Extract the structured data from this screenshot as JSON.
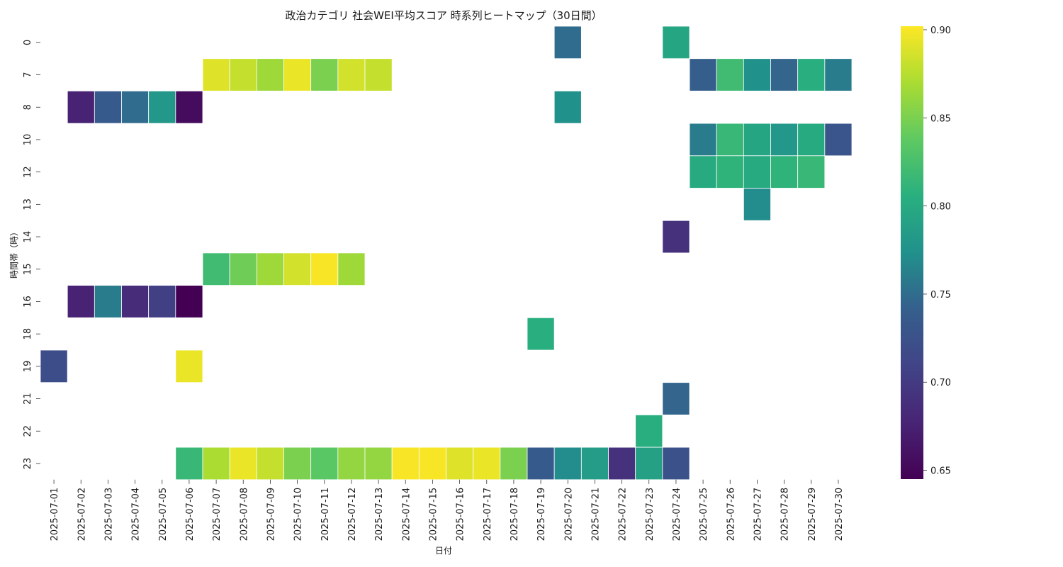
{
  "chart_data": {
    "type": "heatmap",
    "title": "政治カテゴリ 社会WEI平均スコア 時系列ヒートマップ（30日間）",
    "xlabel": "日付",
    "ylabel": "時間帯（時）",
    "x": [
      "2025-07-01",
      "2025-07-02",
      "2025-07-03",
      "2025-07-04",
      "2025-07-05",
      "2025-07-06",
      "2025-07-07",
      "2025-07-08",
      "2025-07-09",
      "2025-07-10",
      "2025-07-11",
      "2025-07-12",
      "2025-07-13",
      "2025-07-14",
      "2025-07-15",
      "2025-07-16",
      "2025-07-17",
      "2025-07-18",
      "2025-07-19",
      "2025-07-20",
      "2025-07-21",
      "2025-07-22",
      "2025-07-23",
      "2025-07-24",
      "2025-07-25",
      "2025-07-26",
      "2025-07-27",
      "2025-07-28",
      "2025-07-29",
      "2025-07-30"
    ],
    "y": [
      "0",
      "7",
      "8",
      "10",
      "12",
      "13",
      "14",
      "15",
      "16",
      "18",
      "19",
      "21",
      "22",
      "23"
    ],
    "values": [
      [
        null,
        null,
        null,
        null,
        null,
        null,
        null,
        null,
        null,
        null,
        null,
        null,
        null,
        null,
        null,
        null,
        null,
        null,
        null,
        0.75,
        null,
        null,
        null,
        0.795,
        null,
        null,
        null,
        null,
        null,
        null
      ],
      [
        null,
        null,
        null,
        null,
        null,
        null,
        0.89,
        0.88,
        0.865,
        0.895,
        0.85,
        0.885,
        0.88,
        null,
        null,
        null,
        null,
        null,
        null,
        null,
        null,
        null,
        null,
        null,
        0.74,
        0.82,
        0.775,
        0.745,
        0.805,
        0.76
      ],
      [
        null,
        0.675,
        0.735,
        0.75,
        0.78,
        0.655,
        null,
        null,
        null,
        null,
        null,
        null,
        null,
        null,
        null,
        null,
        null,
        null,
        null,
        0.775,
        null,
        null,
        null,
        null,
        null,
        null,
        null,
        null,
        null,
        null
      ],
      [
        null,
        null,
        null,
        null,
        null,
        null,
        null,
        null,
        null,
        null,
        null,
        null,
        null,
        null,
        null,
        null,
        null,
        null,
        null,
        null,
        null,
        null,
        null,
        null,
        0.76,
        0.815,
        0.795,
        0.78,
        0.8,
        0.73
      ],
      [
        null,
        null,
        null,
        null,
        null,
        null,
        null,
        null,
        null,
        null,
        null,
        null,
        null,
        null,
        null,
        null,
        null,
        null,
        null,
        null,
        null,
        null,
        null,
        null,
        0.8,
        0.81,
        0.8,
        0.81,
        0.815,
        null
      ],
      [
        null,
        null,
        null,
        null,
        null,
        null,
        null,
        null,
        null,
        null,
        null,
        null,
        null,
        null,
        null,
        null,
        null,
        null,
        null,
        null,
        null,
        null,
        null,
        null,
        null,
        null,
        0.77,
        null,
        null,
        null
      ],
      [
        null,
        null,
        null,
        null,
        null,
        null,
        null,
        null,
        null,
        null,
        null,
        null,
        null,
        null,
        null,
        null,
        null,
        null,
        null,
        null,
        null,
        null,
        null,
        0.69,
        null,
        null,
        null,
        null,
        null,
        null
      ],
      [
        null,
        null,
        null,
        null,
        null,
        null,
        0.82,
        0.845,
        0.865,
        0.885,
        0.9,
        0.865,
        null,
        null,
        null,
        null,
        null,
        null,
        null,
        null,
        null,
        null,
        null,
        null,
        null,
        null,
        null,
        null,
        null,
        null
      ],
      [
        null,
        0.675,
        0.76,
        0.685,
        0.705,
        0.645,
        null,
        null,
        null,
        null,
        null,
        null,
        null,
        null,
        null,
        null,
        null,
        null,
        null,
        null,
        null,
        null,
        null,
        null,
        null,
        null,
        null,
        null,
        null,
        null
      ],
      [
        null,
        null,
        null,
        null,
        null,
        null,
        null,
        null,
        null,
        null,
        null,
        null,
        null,
        null,
        null,
        null,
        null,
        null,
        0.805,
        null,
        null,
        null,
        null,
        null,
        null,
        null,
        null,
        null,
        null,
        null
      ],
      [
        0.72,
        null,
        null,
        null,
        null,
        0.895,
        null,
        null,
        null,
        null,
        null,
        null,
        null,
        null,
        null,
        null,
        null,
        null,
        null,
        null,
        null,
        null,
        null,
        null,
        null,
        null,
        null,
        null,
        null,
        null
      ],
      [
        null,
        null,
        null,
        null,
        null,
        null,
        null,
        null,
        null,
        null,
        null,
        null,
        null,
        null,
        null,
        null,
        null,
        null,
        null,
        null,
        null,
        null,
        null,
        0.745,
        null,
        null,
        null,
        null,
        null,
        null
      ],
      [
        null,
        null,
        null,
        null,
        null,
        null,
        null,
        null,
        null,
        null,
        null,
        null,
        null,
        null,
        null,
        null,
        null,
        null,
        null,
        null,
        null,
        null,
        0.805,
        null,
        null,
        null,
        null,
        null,
        null,
        null
      ],
      [
        null,
        null,
        null,
        null,
        null,
        0.815,
        0.87,
        0.895,
        0.88,
        0.85,
        0.835,
        0.86,
        0.86,
        0.9,
        0.9,
        0.89,
        0.895,
        0.85,
        0.735,
        0.77,
        0.785,
        0.69,
        0.79,
        0.725,
        null,
        null,
        null,
        null,
        null,
        null
      ]
    ],
    "colorscale": "viridis",
    "vmin": 0.645,
    "vmax": 0.902,
    "colorbar_ticks": [
      "0.65",
      "0.70",
      "0.75",
      "0.80",
      "0.85",
      "0.90"
    ],
    "colorbar_tick_values": [
      0.65,
      0.7,
      0.75,
      0.8,
      0.85,
      0.9
    ],
    "grid": false,
    "legend": "colorbar-right"
  }
}
